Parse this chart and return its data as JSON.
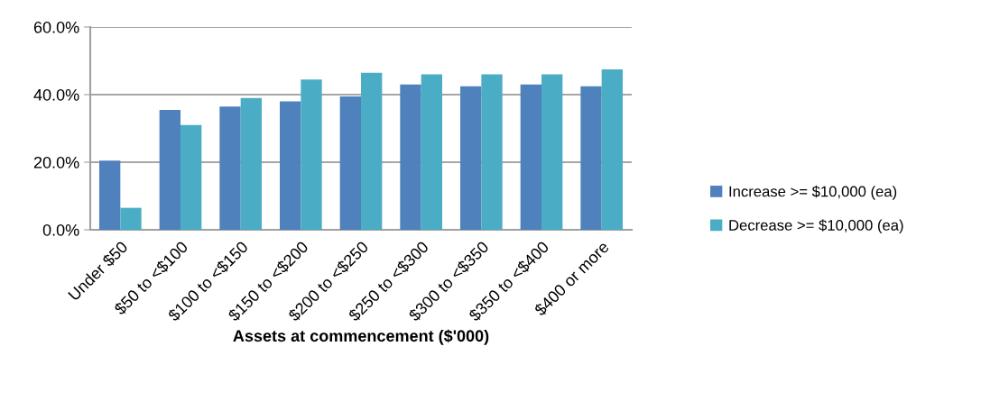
{
  "chart_data": {
    "type": "bar",
    "xlabel": "Assets at commencement ($'000)",
    "categories": [
      "Under $50",
      "$50 to <$100",
      "$100 to <$150",
      "$150 to <$200",
      "$200 to <$250",
      "$250 to <$300",
      "$300 to <$350",
      "$350 to <$400",
      "$400 or more"
    ],
    "series": [
      {
        "name": "Increase >= $10,000 (ea)",
        "color": "#4f81bd",
        "values": [
          20.5,
          35.5,
          36.5,
          38,
          39.5,
          43,
          42.5,
          43,
          42.5
        ]
      },
      {
        "name": "Decrease >= $10,000 (ea)",
        "color": "#4bacc6",
        "values": [
          6.5,
          31,
          39,
          44.5,
          46.5,
          46,
          46,
          46,
          47.5
        ]
      }
    ],
    "ylim": [
      0,
      60
    ],
    "yticks": [
      {
        "value": 0,
        "label": "0.0%"
      },
      {
        "value": 20,
        "label": "20.0%"
      },
      {
        "value": 40,
        "label": "40.0%"
      },
      {
        "value": 60,
        "label": "60.0%"
      }
    ],
    "grid": "y",
    "legend": "right"
  }
}
